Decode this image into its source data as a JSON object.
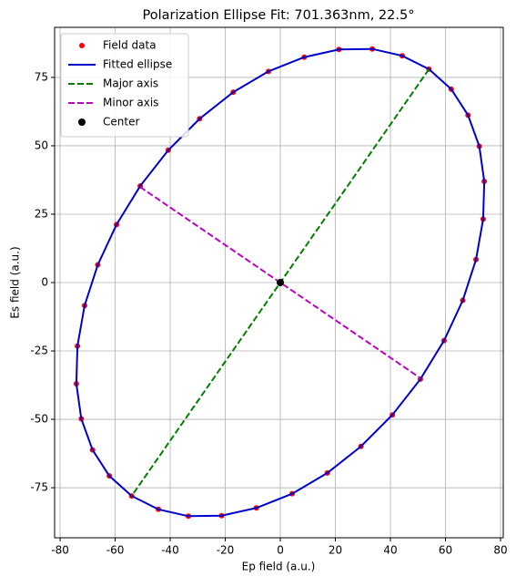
{
  "chart_data": {
    "type": "line",
    "title": "Polarization Ellipse Fit: 701.363nm, 22.5°",
    "x_label": "Ep field (a.u.)",
    "y_label": "Es field (a.u.)",
    "xlim": [
      -82,
      81
    ],
    "ylim": [
      -93.3,
      93.3
    ],
    "xticks": [
      -80,
      -60,
      -40,
      -20,
      0,
      20,
      40,
      60,
      80
    ],
    "yticks": [
      -75,
      -50,
      -25,
      0,
      25,
      50,
      75
    ],
    "grid": true,
    "legend": "upper left",
    "series": [
      {
        "name": "Field data",
        "color": "#ff0000",
        "style": "marker",
        "x": [
          54.0,
          44.3,
          33.4,
          21.3,
          8.7,
          -4.3,
          -17.1,
          -29.3,
          -40.7,
          -50.9,
          -59.5,
          -66.3,
          -71.1,
          -73.7,
          -74.1,
          -72.3,
          -68.2,
          -62.1,
          -54.0,
          -44.3,
          -33.4,
          -21.3,
          -8.7,
          4.3,
          17.1,
          29.3,
          40.7,
          50.9,
          59.5,
          66.3,
          71.1,
          73.7,
          74.1,
          72.3,
          68.2,
          62.1
        ],
        "y": [
          78.0,
          82.9,
          85.4,
          85.2,
          82.4,
          77.2,
          69.6,
          59.9,
          48.4,
          35.3,
          21.2,
          6.5,
          -8.4,
          -23.2,
          -37.0,
          -49.8,
          -61.2,
          -70.7,
          -78.0,
          -82.9,
          -85.4,
          -85.2,
          -82.4,
          -77.2,
          -69.6,
          -59.9,
          -48.4,
          -35.3,
          -21.2,
          -6.5,
          8.4,
          23.2,
          37.0,
          49.8,
          61.2,
          70.7
        ]
      },
      {
        "name": "Fitted ellipse",
        "color": "#0000cc",
        "style": "solid",
        "x": [
          54.0,
          44.3,
          33.4,
          21.3,
          8.7,
          -4.3,
          -17.1,
          -29.3,
          -40.7,
          -50.9,
          -59.5,
          -66.3,
          -71.1,
          -73.7,
          -74.1,
          -72.3,
          -68.2,
          -62.1,
          -54.0,
          -44.3,
          -33.4,
          -21.3,
          -8.7,
          4.3,
          17.1,
          29.3,
          40.7,
          50.9,
          59.5,
          66.3,
          71.1,
          73.7,
          74.1,
          72.3,
          68.2,
          62.1,
          54.0
        ],
        "y": [
          78.0,
          82.9,
          85.4,
          85.2,
          82.4,
          77.2,
          69.6,
          59.9,
          48.4,
          35.3,
          21.2,
          6.5,
          -8.4,
          -23.2,
          -37.0,
          -49.8,
          -61.2,
          -70.7,
          -78.0,
          -82.9,
          -85.4,
          -85.2,
          -82.4,
          -77.2,
          -69.6,
          -59.9,
          -48.4,
          -35.3,
          -21.2,
          -6.5,
          8.4,
          23.2,
          37.0,
          49.8,
          61.2,
          70.7,
          78.0
        ]
      },
      {
        "name": "Major axis",
        "color": "#008000",
        "style": "dashed",
        "x": [
          54,
          -54
        ],
        "y": [
          78,
          -78
        ]
      },
      {
        "name": "Minor axis",
        "color": "#bf00bf",
        "style": "dashed",
        "x": [
          -51,
          51
        ],
        "y": [
          35,
          -35
        ]
      },
      {
        "name": "Center",
        "color": "#000000",
        "style": "marker-large",
        "x": [
          0
        ],
        "y": [
          0
        ]
      }
    ]
  }
}
